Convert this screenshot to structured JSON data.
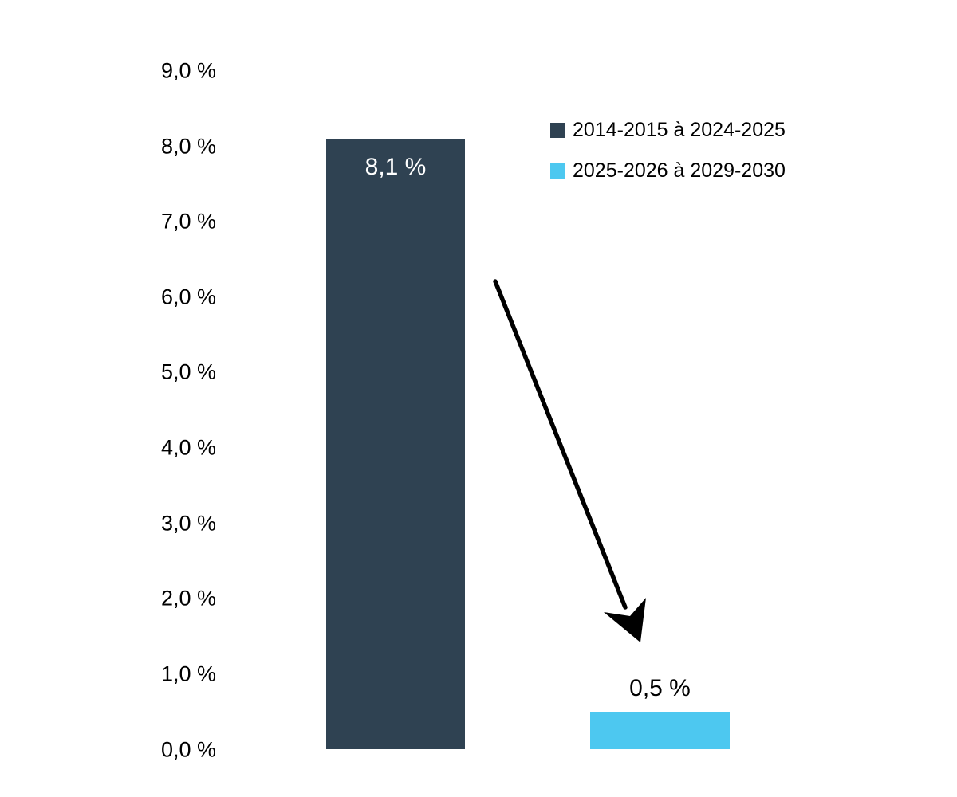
{
  "chart_data": {
    "type": "bar",
    "title": "",
    "xlabel": "",
    "ylabel": "",
    "categories": [
      "2014-2015 à 2024-2025",
      "2025-2026 à 2029-2030"
    ],
    "values": [
      8.1,
      0.5
    ],
    "bar_labels": [
      "8,1 %",
      "0,5 %"
    ],
    "bar_label_placement": [
      "inside-top",
      "above"
    ],
    "bar_colors": [
      "#2F4252",
      "#4DC8F0"
    ],
    "bar_label_colors": [
      "#FFFFFF",
      "#000000"
    ],
    "ylim": [
      0,
      9
    ],
    "ytick_values": [
      9,
      8,
      7,
      6,
      5,
      4,
      3,
      2,
      1,
      0
    ],
    "ytick_labels": [
      "9,0 %",
      "8,0 %",
      "7,0 %",
      "6,0 %",
      "5,0 %",
      "4,0 %",
      "3,0 %",
      "2,0 %",
      "1,0 %",
      "0,0 %"
    ],
    "grid": false,
    "axis_lines": false,
    "legend": {
      "position": "upper-right",
      "items": [
        {
          "label": "2014-2015 à 2024-2025",
          "color": "#2F4252"
        },
        {
          "label": "2025-2026 à 2029-2030",
          "color": "#4DC8F0"
        }
      ]
    },
    "annotations": [
      {
        "type": "arrow",
        "color": "#000000",
        "description": "black diagonal arrow pointing from the tall dark bar down toward the short blue bar, indicating a decrease from 8,1 % to 0,5 %"
      }
    ]
  }
}
